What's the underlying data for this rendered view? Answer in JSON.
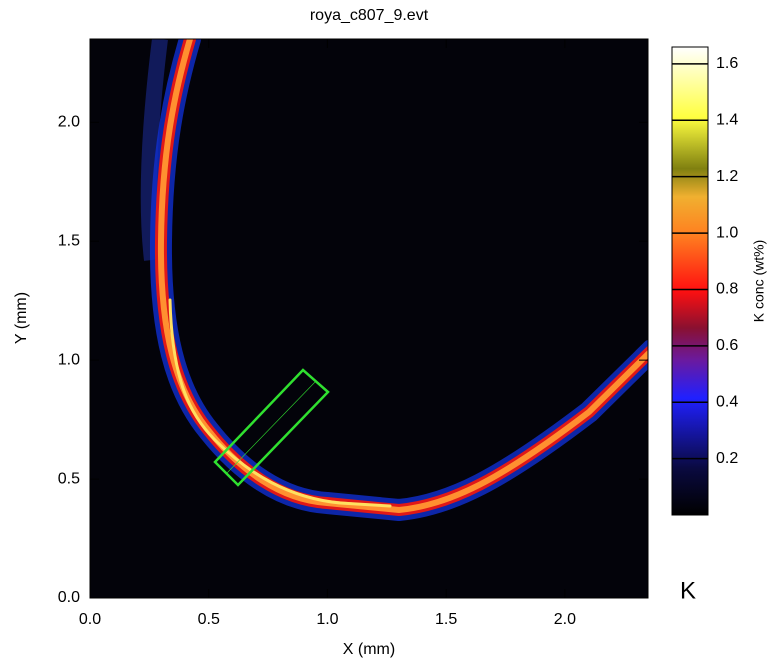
{
  "chart_data": {
    "type": "heatmap",
    "title": "roya_c807_9.evt",
    "x_label": "X (mm)",
    "y_label": "Y (mm)",
    "xlim": [
      0,
      2.35
    ],
    "ylim": [
      0,
      2.35
    ],
    "xticks": [
      {
        "value": 0,
        "label": "0.0"
      },
      {
        "value": 0.5,
        "label": "0.5"
      },
      {
        "value": 1,
        "label": "1.0"
      },
      {
        "value": 1.5,
        "label": "1.5"
      },
      {
        "value": 2,
        "label": "2.0"
      }
    ],
    "yticks": [
      {
        "value": 0,
        "label": "0.0"
      },
      {
        "value": 0.5,
        "label": "0.5"
      },
      {
        "value": 1,
        "label": "1.0"
      },
      {
        "value": 1.5,
        "label": "1.5"
      },
      {
        "value": 2,
        "label": "2.0"
      }
    ],
    "colorbar": {
      "label": "K conc (wt%)",
      "lim": [
        0,
        1.66
      ],
      "ticks": [
        0.2,
        0.4,
        0.6,
        0.8,
        {
          "value": 1,
          "label": "1.0"
        },
        1.2,
        1.4,
        1.6
      ]
    },
    "annotation": "K"
  }
}
